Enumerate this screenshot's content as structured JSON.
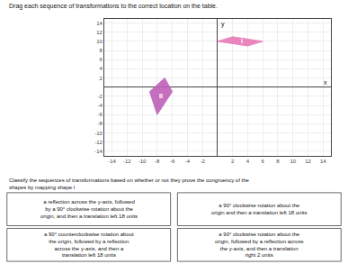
{
  "chart_data": {
    "type": "polygon",
    "title": "Drag each sequence of transformations to the correct location on the table.",
    "subtitle": "Classify the sequences of transformations based on whether or not they prove the congruency of the shapes by mapping shape l",
    "xlabel": "x",
    "ylabel": "y",
    "xlim": [
      -15,
      15
    ],
    "ylim": [
      -15,
      15
    ],
    "xticks": [
      -14,
      -12,
      -10,
      -8,
      -6,
      -4,
      -2,
      2,
      4,
      6,
      8,
      10,
      12,
      14
    ],
    "yticks": [
      -14,
      -12,
      -10,
      -8,
      -6,
      -4,
      -2,
      2,
      4,
      6,
      8,
      10,
      12,
      14
    ],
    "grid": true,
    "series": [
      {
        "color": "#e87ab8",
        "x": [
          0,
          2,
          6,
          4,
          0
        ],
        "y": [
          10,
          11,
          10,
          9,
          10
        ]
      },
      {
        "color": "#c060b8",
        "x": [
          -9,
          -7,
          -6,
          -8,
          -9
        ],
        "y": [
          -1,
          2,
          -1,
          -6,
          -1
        ]
      }
    ],
    "annotations": [
      {
        "text": "l",
        "x": 3.2,
        "y": 10.0
      },
      {
        "text": "II",
        "x": -7.5,
        "y": -2.0
      }
    ],
    "choices": [
      "a reflection across the y-axis, followed\nby a 90° clockwise rotation about the\norigin, and then a translation left 18 units",
      "a 90° clockwise rotation about the\norigin and then a translation left 18 units",
      "a 90° counterclockwise rotation about\nthe origin, followed by a reflection\nacross the y-axis, and then a\ntranslation left 18 units",
      "a 90° clockwise rotation about the\norigin, followed by a reflection across\nthe y-axis, and then a translation\nright 2 units"
    ]
  }
}
